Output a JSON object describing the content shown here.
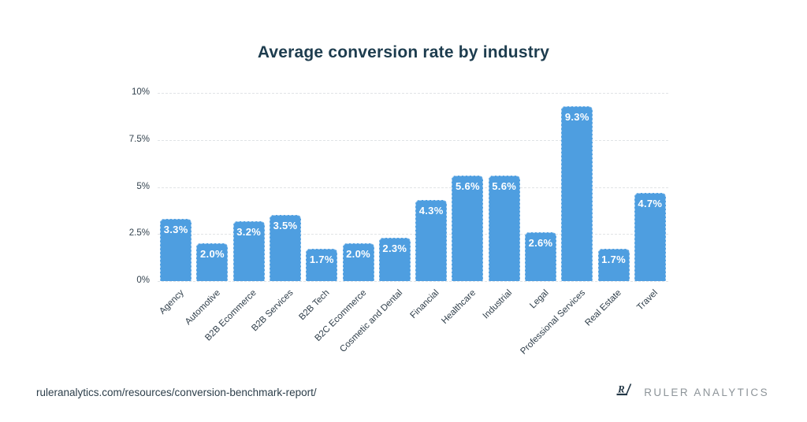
{
  "page": {
    "title": "Average conversion rate by industry",
    "footer": {
      "url": "ruleranalytics.com/resources/conversion-benchmark-report/",
      "brand": "RULER ANALYTICS",
      "logo_icon": "ruler-r-slash-logo"
    }
  },
  "colors": {
    "bar": "#4E9EE0",
    "title_text": "#1D3C4E",
    "axis_text": "#33424E",
    "x_label_text": "#2F3E4A",
    "grid": "#E0E3E6",
    "value_label": "#FFFFFF",
    "footer_url_text": "#2C3E4A",
    "brand_text": "#8D9499",
    "logo": "#233746"
  },
  "chart_data": {
    "type": "bar",
    "title": "Average conversion rate by industry",
    "categories": [
      "Agency",
      "Automotive",
      "B2B Ecommerce",
      "B2B Services",
      "B2B Tech",
      "B2C Ecommerce",
      "Cosmetic and Dental",
      "Financial",
      "Healthcare",
      "Industrial",
      "Legal",
      "Professional Services",
      "Real Estate",
      "Travel"
    ],
    "values": [
      3.3,
      2.0,
      3.2,
      3.5,
      1.7,
      2.0,
      2.3,
      4.3,
      5.6,
      5.6,
      2.6,
      9.3,
      1.7,
      4.7
    ],
    "value_labels": [
      "3.3%",
      "2.0%",
      "3.2%",
      "3.5%",
      "1.7%",
      "2.0%",
      "2.3%",
      "4.3%",
      "5.6%",
      "5.6%",
      "2.6%",
      "9.3%",
      "1.7%",
      "4.7%"
    ],
    "y_ticks": [
      {
        "value": 0,
        "label": "0%"
      },
      {
        "value": 2.5,
        "label": "2.5%"
      },
      {
        "value": 5,
        "label": "5%"
      },
      {
        "value": 7.5,
        "label": "7.5%"
      },
      {
        "value": 10,
        "label": "10%"
      }
    ],
    "ylim": [
      0,
      10
    ],
    "xlabel": "",
    "ylabel": "",
    "grid": true,
    "legend": "none",
    "bar_label_position": "inside-top"
  }
}
